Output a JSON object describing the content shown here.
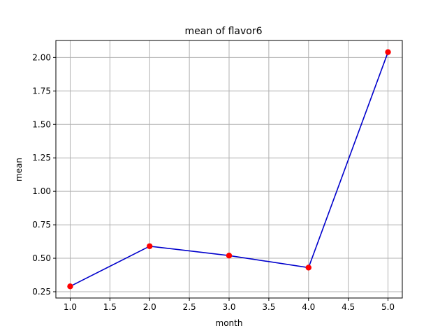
{
  "chart_data": {
    "type": "line",
    "title": "mean of flavor6",
    "xlabel": "month",
    "ylabel": "mean",
    "x": [
      1.0,
      2.0,
      3.0,
      4.0,
      5.0
    ],
    "series": [
      {
        "values": [
          0.29,
          0.59,
          0.52,
          0.43,
          2.04
        ],
        "line_color": "#0000cc",
        "marker_color": "#ff0000"
      }
    ],
    "xlim": [
      0.82,
      5.18
    ],
    "ylim": [
      0.203,
      2.127
    ],
    "xticks": [
      1.0,
      1.5,
      2.0,
      2.5,
      3.0,
      3.5,
      4.0,
      4.5,
      5.0
    ],
    "xtick_labels": [
      "1.0",
      "1.5",
      "2.0",
      "2.5",
      "3.0",
      "3.5",
      "4.0",
      "4.5",
      "5.0"
    ],
    "yticks": [
      0.25,
      0.5,
      0.75,
      1.0,
      1.25,
      1.5,
      1.75,
      2.0
    ],
    "ytick_labels": [
      "0.25",
      "0.50",
      "0.75",
      "1.00",
      "1.25",
      "1.50",
      "1.75",
      "2.00"
    ],
    "grid": true
  }
}
